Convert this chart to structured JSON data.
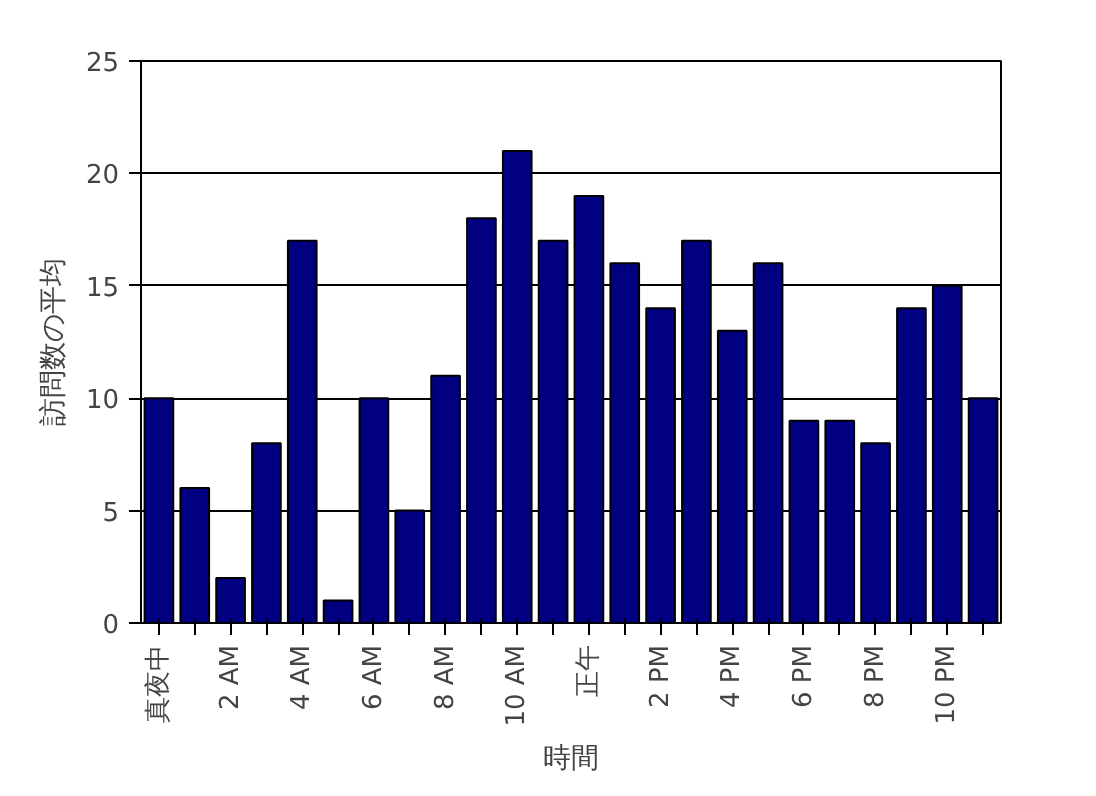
{
  "chart_data": {
    "type": "bar",
    "xlabel": "時間",
    "ylabel": "訪問数の平均",
    "categories": [
      "真夜中",
      null,
      "2 AM",
      null,
      "4 AM",
      null,
      "6 AM",
      null,
      "8 AM",
      null,
      "10 AM",
      null,
      "正午",
      null,
      "2 PM",
      null,
      "4 PM",
      null,
      "6 PM",
      null,
      "8 PM",
      null,
      "10 PM",
      null
    ],
    "values": [
      10,
      6,
      2,
      8,
      17,
      1,
      10,
      5,
      11,
      18,
      21,
      17,
      19,
      16,
      14,
      17,
      13,
      16,
      9,
      9,
      8,
      14,
      15,
      10
    ],
    "color": "#000080",
    "ylim": [
      0,
      25
    ],
    "yticks": [
      0,
      5,
      10,
      15,
      20,
      25
    ],
    "grid": "y"
  }
}
